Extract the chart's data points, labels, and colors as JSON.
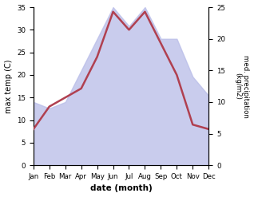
{
  "months": [
    "Jan",
    "Feb",
    "Mar",
    "Apr",
    "May",
    "Jun",
    "Jul",
    "Aug",
    "Sep",
    "Oct",
    "Nov",
    "Dec"
  ],
  "temp": [
    8,
    13,
    15,
    17,
    24,
    34,
    30,
    34,
    27,
    20,
    9,
    8
  ],
  "precip": [
    10,
    9,
    10,
    15,
    20,
    25,
    22,
    25,
    20,
    20,
    14,
    11
  ],
  "temp_color": "#b04050",
  "precip_fill_color": "#b8bce8",
  "ylabel_left": "max temp (C)",
  "ylabel_right": "med. precipitation\n(kg/m2)",
  "xlabel": "date (month)",
  "ylim_left": [
    0,
    35
  ],
  "ylim_right": [
    0,
    25
  ],
  "yticks_left": [
    0,
    5,
    10,
    15,
    20,
    25,
    30,
    35
  ],
  "yticks_right": [
    0,
    5,
    10,
    15,
    20,
    25
  ],
  "line_width": 1.8,
  "bg_color": "#ffffff"
}
